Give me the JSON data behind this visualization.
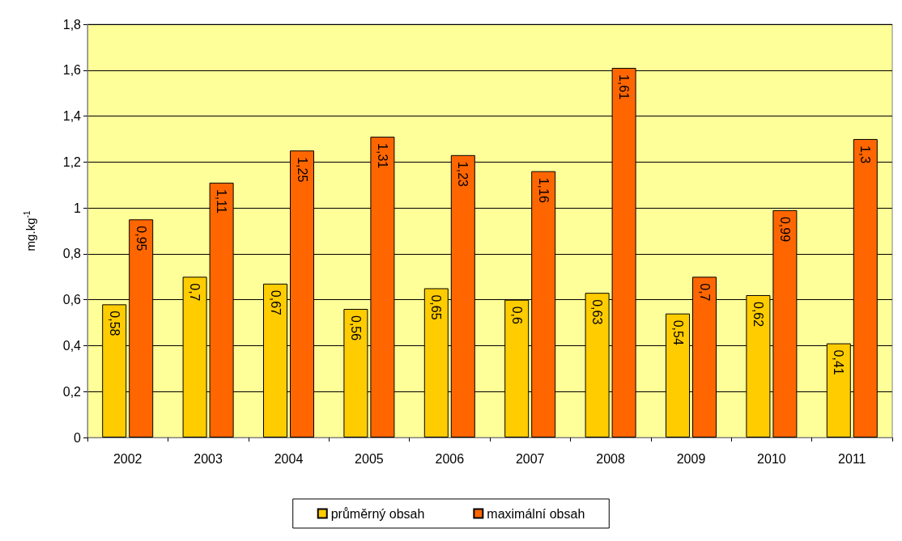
{
  "chart_data": {
    "type": "bar",
    "ylabel": "mg.kg$^{-1}$",
    "categories": [
      "2002",
      "2003",
      "2004",
      "2005",
      "2006",
      "2007",
      "2008",
      "2009",
      "2010",
      "2011"
    ],
    "series": [
      {
        "name": "průměrný obsah",
        "color": "#ffcc00",
        "values": [
          0.58,
          0.7,
          0.67,
          0.56,
          0.65,
          0.6,
          0.63,
          0.54,
          0.62,
          0.41
        ],
        "value_labels": [
          "0,58",
          "0,7",
          "0,67",
          "0,56",
          "0,65",
          "0,6",
          "0,63",
          "0,54",
          "0,62",
          "0,41"
        ]
      },
      {
        "name": "maximální obsah",
        "color": "#ff6600",
        "values": [
          0.95,
          1.11,
          1.25,
          1.31,
          1.23,
          1.16,
          1.61,
          0.7,
          0.99,
          1.3
        ],
        "value_labels": [
          "0,95",
          "1,11",
          "1,25",
          "1,31",
          "1,23",
          "1,16",
          "1,61",
          "0,7",
          "0,99",
          "1,3"
        ]
      }
    ],
    "ylim": [
      0,
      1.8
    ],
    "yticks": [
      0,
      {
        "value": 0.2,
        "label": "0,2"
      },
      {
        "value": 0.4,
        "label": "0,4"
      },
      {
        "value": 0.6,
        "label": "0,6"
      },
      {
        "value": 0.8,
        "label": "0,8"
      },
      1,
      {
        "value": 1.2,
        "label": "1,2"
      },
      {
        "value": 1.4,
        "label": "1,4"
      },
      {
        "value": 1.6,
        "label": "1,6"
      },
      {
        "value": 1.8,
        "label": "1,8"
      }
    ],
    "grid": "y",
    "legend": "bottom"
  }
}
